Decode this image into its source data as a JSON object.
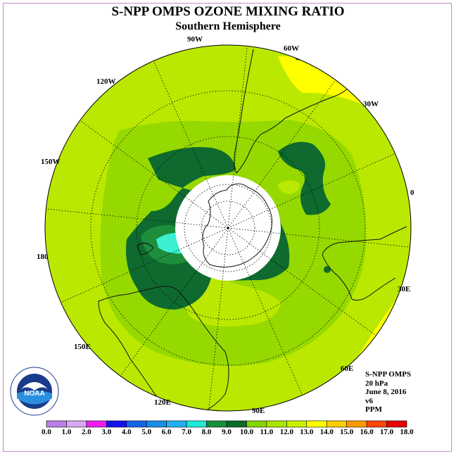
{
  "title": "S-NPP OMPS OZONE MIXING RATIO",
  "subtitle": "Southern Hemisphere",
  "info": {
    "instrument": "S-NPP OMPS",
    "level": "20 hPa",
    "date": "June 8, 2016",
    "version": "v6",
    "units": "PPM"
  },
  "longitude_labels": {
    "lon_90w": "90W",
    "lon_60w": "60W",
    "lon_30w": "30W",
    "lon_0": "0",
    "lon_30e": "30E",
    "lon_60e": "60E",
    "lon_90e": "90E",
    "lon_120e": "120E",
    "lon_150e": "150E",
    "lon_180": "180",
    "lon_150w": "150W",
    "lon_120w": "120W"
  },
  "logo_text": "NOAA",
  "colorbar": {
    "labels": [
      "0.0",
      "1.0",
      "2.0",
      "3.0",
      "4.0",
      "5.0",
      "6.0",
      "7.0",
      "8.0",
      "9.0",
      "10.0",
      "11.0",
      "12.0",
      "13.0",
      "14.0",
      "15.0",
      "16.0",
      "17.0",
      "18.0"
    ],
    "colors": [
      "#b87fe6",
      "#d7a9f2",
      "#f21cf2",
      "#1212f0",
      "#1463e6",
      "#1a8ce6",
      "#1fb0f0",
      "#22e8d8",
      "#178f3a",
      "#0a6b2a",
      "#86d400",
      "#a8e600",
      "#c8f000",
      "#ffff00",
      "#ffcc00",
      "#ff9900",
      "#ff4400",
      "#e60000",
      "#7a4a2a"
    ]
  },
  "map_colors": {
    "c_11_12": "#bbe800",
    "c_10_11": "#96d900",
    "c_9_10": "#0e6a2e",
    "c_8_9": "#1d8f3c",
    "c_7_8": "#3af0d0",
    "c_12_13": "#ffff00",
    "mask": "#ffffff"
  }
}
